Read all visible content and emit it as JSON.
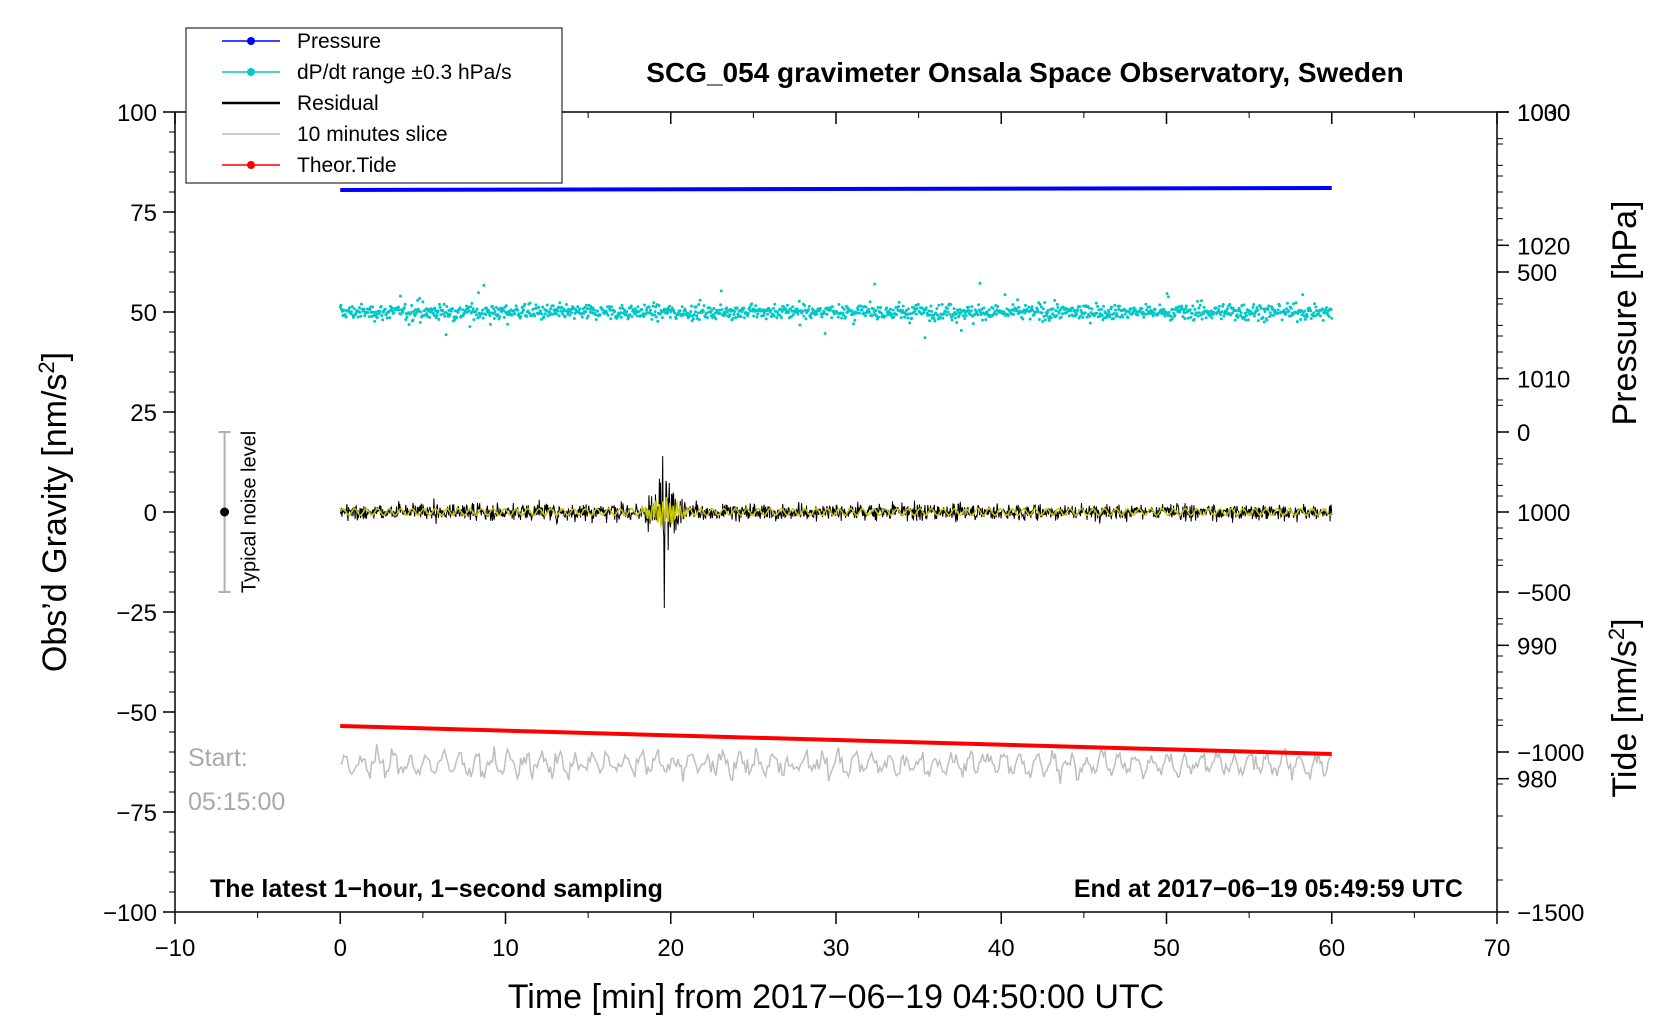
{
  "chart_data": {
    "type": "line",
    "title": "SCG_054 gravimeter Onsala Space Observatory, Sweden",
    "xlabel": "Time [min] from 2017−06−19 04:50:00 UTC",
    "ylabel_left": "Obs’d Gravity [nm/s²]",
    "ylabel_right_top": "Pressure [hPa]",
    "ylabel_right_bottom": "Tide [nm/s²]",
    "xlim": [
      -10,
      70
    ],
    "ylim": [
      -100,
      100
    ],
    "pressure_axis_range": [
      970,
      1030
    ],
    "tide_axis_range": [
      -1500,
      1000
    ],
    "x_ticks": [
      "−10",
      "0",
      "10",
      "20",
      "30",
      "40",
      "50",
      "60",
      "70"
    ],
    "y_ticks": [
      "−100",
      "−75",
      "−50",
      "−25",
      "0",
      "25",
      "50",
      "75",
      "100"
    ],
    "pressure_ticks": [
      "980",
      "990",
      "1000",
      "1010",
      "1020",
      "1030"
    ],
    "tide_ticks": [
      "−1500",
      "−1000",
      "−500",
      "0",
      "500",
      "1000"
    ],
    "legend_placement": "top-left",
    "legend": [
      {
        "label": "Pressure",
        "color": "#0000ff",
        "marker": "line-dot"
      },
      {
        "label": "dP/dt range ±0.3 hPa/s",
        "color": "#00c8c8",
        "marker": "line-dot"
      },
      {
        "label": "Residual",
        "color": "#000000",
        "marker": "line"
      },
      {
        "label": "10 minutes slice",
        "color": "#bebebe",
        "marker": "line"
      },
      {
        "label": "Theor.Tide",
        "color": "#ff0000",
        "marker": "line-dot"
      }
    ],
    "series": [
      {
        "name": "Pressure",
        "color": "#0000ff",
        "x": [
          0,
          60
        ],
        "y": [
          80.5,
          81.0
        ]
      },
      {
        "name": "dP/dt range ±0.3 hPa/s",
        "color": "#00c8c8",
        "x": [
          0,
          60
        ],
        "y_center": 50,
        "y_spread": 10
      },
      {
        "name": "Residual",
        "color": "#000000",
        "x": [
          0,
          60
        ],
        "y_center": 0,
        "event_x": 19.6,
        "event_peak": [
          -24,
          14
        ]
      },
      {
        "name": "10 minutes slice",
        "color": "#bebebe",
        "x": [
          0,
          60
        ],
        "y_center": -63
      },
      {
        "name": "Theor.Tide",
        "color": "#ff0000",
        "x": [
          0,
          60
        ],
        "y": [
          -53.5,
          -60.5
        ]
      }
    ],
    "smoothed_residual_color": "#c8c800",
    "noise_bar": {
      "x": -7,
      "y_range": [
        -20,
        20
      ],
      "label": "Typical noise level"
    },
    "annotations": {
      "start_label": "Start:",
      "start_time": "05:15:00",
      "bottom_left": "The latest 1−hour, 1−second sampling",
      "bottom_right": "End at 2017−06−19 05:49:59 UTC"
    },
    "grid": false
  }
}
